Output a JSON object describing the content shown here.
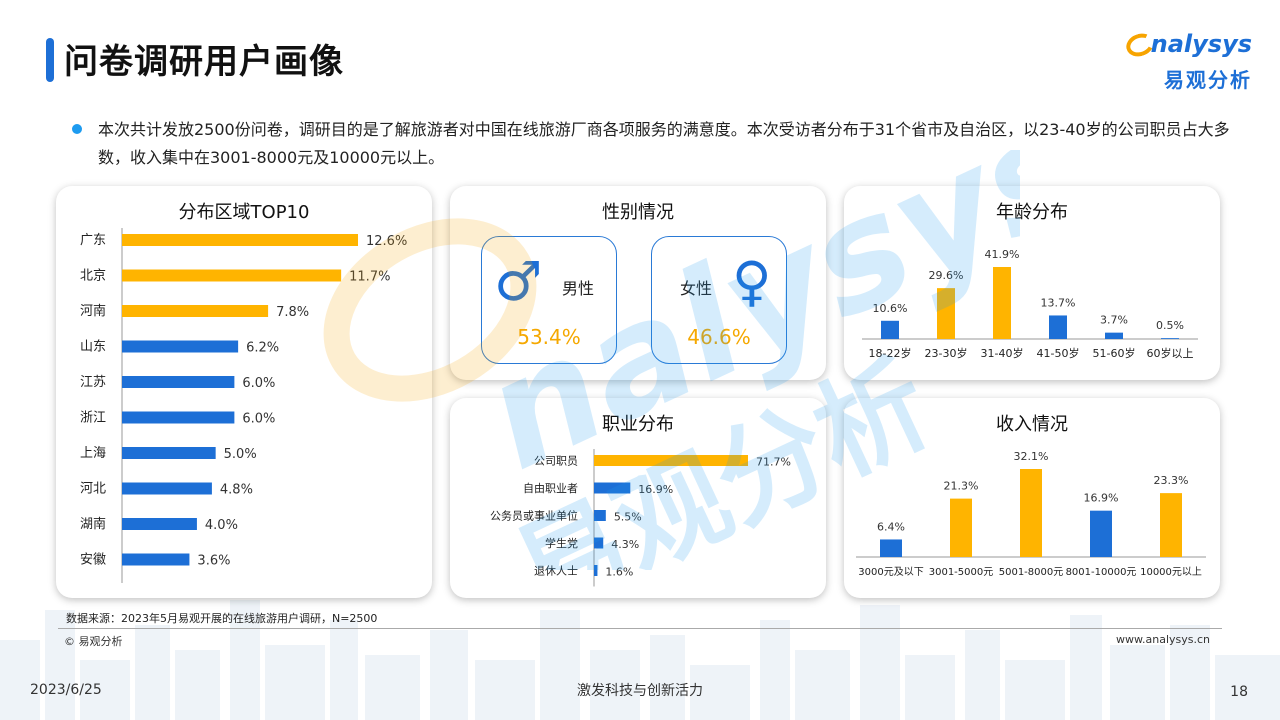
{
  "header": {
    "title": "问卷调研用户画像",
    "logo_en": "nalysys",
    "logo_cn": "易观分析"
  },
  "intro": {
    "text": "本次共计发放2500份问卷，调研目的是了解旅游者对中国在线旅游厂商各项服务的满意度。本次受访者分布于31个省市及自治区，以23-40岁的公司职员占大多数，收入集中在3001-8000元及10000元以上。"
  },
  "gender": {
    "title": "性别情况",
    "male_label": "男性",
    "male_value": "53.4%",
    "female_label": "女性",
    "female_value": "46.6%"
  },
  "colors": {
    "highlight": "#FFB400",
    "normal": "#1D6FD6",
    "axis": "#999999"
  },
  "chart_data": [
    {
      "id": "region",
      "type": "bar",
      "orientation": "horizontal",
      "title": "分布区域TOP10",
      "categories": [
        "广东",
        "北京",
        "河南",
        "山东",
        "江苏",
        "浙江",
        "上海",
        "河北",
        "湖南",
        "安徽"
      ],
      "values": [
        12.6,
        11.7,
        7.8,
        6.2,
        6.0,
        6.0,
        5.0,
        4.8,
        4.0,
        3.6
      ],
      "labels": [
        "12.6%",
        "11.7%",
        "7.8%",
        "6.2%",
        "6.0%",
        "6.0%",
        "5.0%",
        "4.8%",
        "4.0%",
        "3.6%"
      ],
      "highlight": [
        true,
        true,
        true,
        false,
        false,
        false,
        false,
        false,
        false,
        false
      ],
      "unit": "%"
    },
    {
      "id": "age",
      "type": "bar",
      "orientation": "vertical",
      "title": "年龄分布",
      "categories": [
        "18-22岁",
        "23-30岁",
        "31-40岁",
        "41-50岁",
        "51-60岁",
        "60岁以上"
      ],
      "values": [
        10.6,
        29.6,
        41.9,
        13.7,
        3.7,
        0.5
      ],
      "labels": [
        "10.6%",
        "29.6%",
        "41.9%",
        "13.7%",
        "3.7%",
        "0.5%"
      ],
      "highlight": [
        false,
        true,
        true,
        false,
        false,
        false
      ],
      "unit": "%"
    },
    {
      "id": "job",
      "type": "bar",
      "orientation": "horizontal",
      "title": "职业分布",
      "categories": [
        "公司职员",
        "自由职业者",
        "公务员或事业单位",
        "学生党",
        "退休人士"
      ],
      "values": [
        71.7,
        16.9,
        5.5,
        4.3,
        1.6
      ],
      "labels": [
        "71.7%",
        "16.9%",
        "5.5%",
        "4.3%",
        "1.6%"
      ],
      "highlight": [
        true,
        false,
        false,
        false,
        false
      ],
      "unit": "%"
    },
    {
      "id": "income",
      "type": "bar",
      "orientation": "vertical",
      "title": "收入情况",
      "categories": [
        "3000元及以下",
        "3001-5000元",
        "5001-8000元",
        "8001-10000元",
        "10000元以上"
      ],
      "values": [
        6.4,
        21.3,
        32.1,
        16.9,
        23.3
      ],
      "labels": [
        "6.4%",
        "21.3%",
        "32.1%",
        "16.9%",
        "23.3%"
      ],
      "highlight": [
        false,
        true,
        true,
        false,
        true
      ],
      "unit": "%"
    }
  ],
  "footer": {
    "source": "数据来源：2023年5月易观开展的在线旅游用户调研，N=2500",
    "copyright": "© 易观分析",
    "website": "www.analysys.cn",
    "date": "2023/6/25",
    "slogan": "激发科技与创新活力",
    "page": "18"
  }
}
